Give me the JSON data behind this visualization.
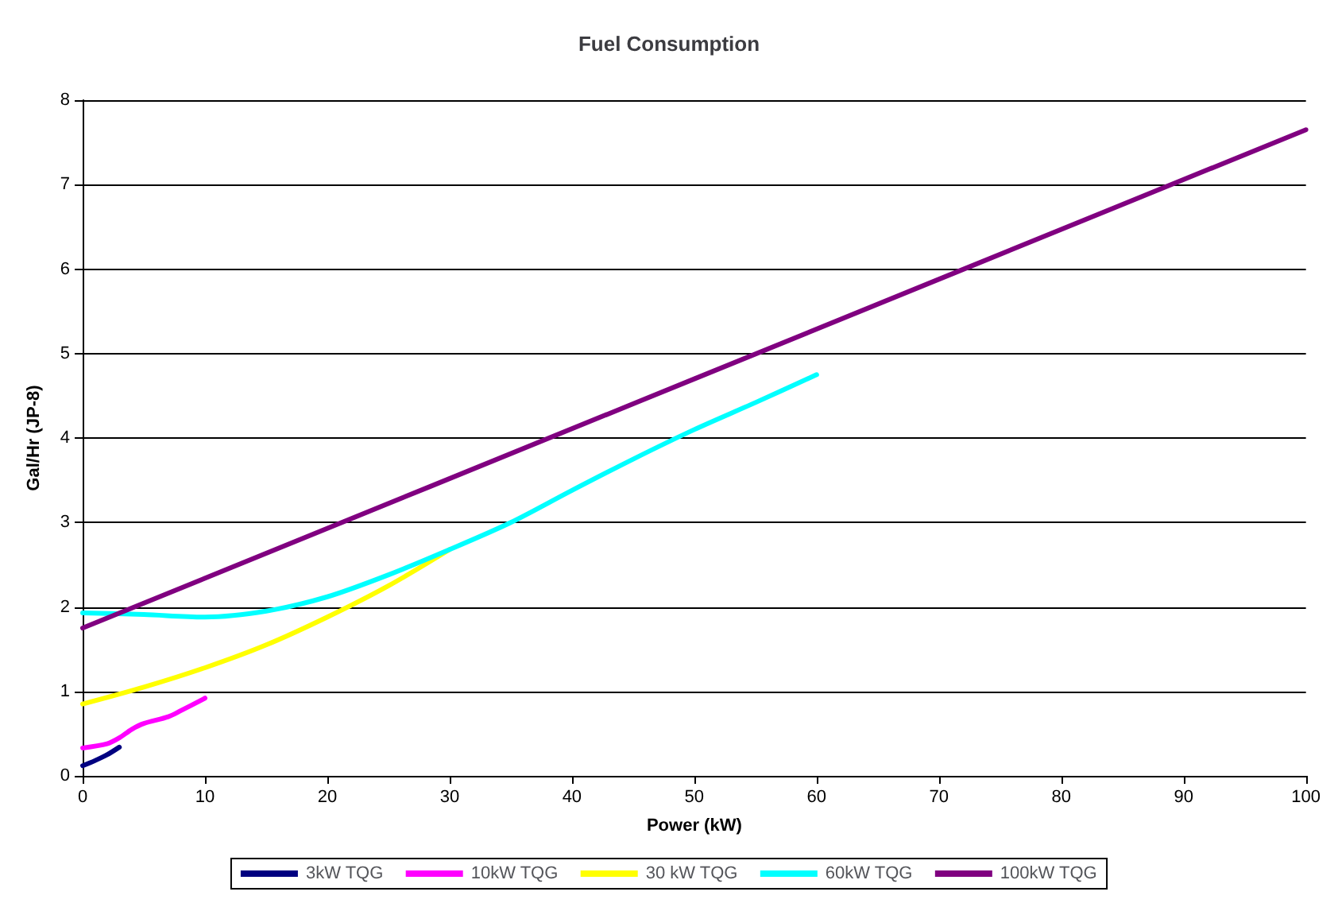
{
  "chart_data": {
    "type": "line",
    "title": "Fuel Consumption",
    "xlabel": "Power (kW)",
    "ylabel": "Gal/Hr (JP-8)",
    "xlim": [
      0,
      100
    ],
    "xticks": [
      0,
      10,
      20,
      30,
      40,
      50,
      60,
      70,
      80,
      90,
      100
    ],
    "ylim": [
      0,
      8
    ],
    "yticks": [
      0,
      1,
      2,
      3,
      4,
      5,
      6,
      7,
      8
    ],
    "grid": "y",
    "legend": "bottom",
    "marker": "none",
    "line_style": "solid",
    "series": [
      {
        "name": "3kW TQG",
        "color": "#000080",
        "x": [
          0,
          1,
          2,
          3
        ],
        "values": [
          0.12,
          0.18,
          0.25,
          0.34
        ]
      },
      {
        "name": "10kW TQG",
        "color": "#ff00ff",
        "x": [
          0,
          2,
          3,
          4,
          5,
          7,
          8,
          10
        ],
        "values": [
          0.33,
          0.38,
          0.45,
          0.55,
          0.62,
          0.7,
          0.77,
          0.92
        ]
      },
      {
        "name": "30 kW TQG",
        "color": "#ffff00",
        "x": [
          0,
          5,
          10,
          15,
          20,
          25,
          30
        ],
        "values": [
          0.85,
          1.05,
          1.28,
          1.55,
          1.88,
          2.25,
          2.68
        ]
      },
      {
        "name": "60kW TQG",
        "color": "#00ffff",
        "x": [
          0,
          5,
          10,
          15,
          20,
          25,
          30,
          35,
          40,
          45,
          50,
          55,
          60
        ],
        "values": [
          1.93,
          1.91,
          1.88,
          1.95,
          2.12,
          2.38,
          2.68,
          3.0,
          3.38,
          3.75,
          4.1,
          4.42,
          4.75
        ]
      },
      {
        "name": "100kW TQG",
        "color": "#800080",
        "x": [
          0,
          50,
          100
        ],
        "values": [
          1.75,
          4.7,
          7.65
        ]
      }
    ]
  }
}
